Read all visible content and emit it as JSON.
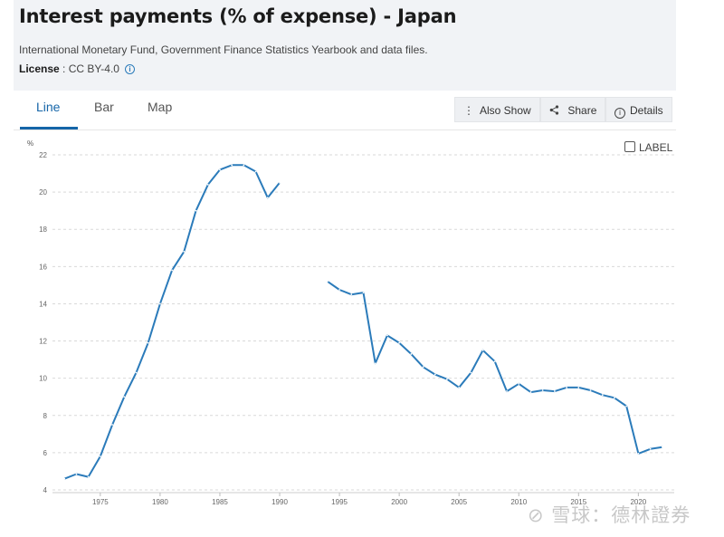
{
  "header": {
    "title": "Interest payments (% of expense) - Japan",
    "source": "International Monetary Fund, Government Finance Statistics Yearbook and data files.",
    "license_label": "License",
    "license_value": " : CC BY-4.0",
    "info_icon": "i"
  },
  "tabs": [
    {
      "label": "Line",
      "active": true
    },
    {
      "label": "Bar",
      "active": false
    },
    {
      "label": "Map",
      "active": false
    }
  ],
  "toolbar": {
    "also_show": "Also Show",
    "share": "Share",
    "details": "Details",
    "also_show_icon": "⋮",
    "share_icon": "share-icon",
    "details_icon": "info-circle-icon"
  },
  "label_toggle": "LABEL",
  "watermark": "⊘ 雪球：德林證券",
  "colors": {
    "line": "#2b7bba",
    "grid": "#d9d9d9",
    "header_bg": "#f1f3f6",
    "accent": "#1565a8"
  },
  "chart_data": {
    "type": "line",
    "title": "",
    "ylabel": "%",
    "xlabel": "",
    "ylim": [
      4,
      22
    ],
    "xlim": [
      1971,
      2023
    ],
    "yticks": [
      4,
      6,
      8,
      10,
      12,
      14,
      16,
      18,
      20,
      22
    ],
    "xticks": [
      1975,
      1980,
      1985,
      1990,
      1995,
      2000,
      2005,
      2010,
      2015,
      2020
    ],
    "grid": "horizontal-dashed",
    "series": [
      {
        "x": [
          1972,
          1973,
          1974,
          1975,
          1976,
          1977,
          1978,
          1979,
          1980,
          1981,
          1982,
          1983,
          1984,
          1985,
          1986,
          1987,
          1988,
          1989,
          1990,
          1991,
          1992,
          1993,
          1994,
          1995,
          1996,
          1997,
          1998,
          1999,
          2000,
          2001,
          2002,
          2003,
          2004,
          2005,
          2006,
          2007,
          2008,
          2009,
          2010,
          2011,
          2012,
          2013,
          2014,
          2015,
          2016,
          2017,
          2018,
          2019,
          2020,
          2021,
          2022
        ],
        "values": [
          4.6,
          4.85,
          4.7,
          5.8,
          7.5,
          9.0,
          10.3,
          11.9,
          14.0,
          15.8,
          16.8,
          19.0,
          20.4,
          21.2,
          21.45,
          21.45,
          21.1,
          19.7,
          20.5,
          null,
          null,
          null,
          15.2,
          14.75,
          14.5,
          14.6,
          10.8,
          12.3,
          11.9,
          11.3,
          10.6,
          10.2,
          9.95,
          9.5,
          10.3,
          11.5,
          10.9,
          9.3,
          9.7,
          9.25,
          9.35,
          9.3,
          9.5,
          9.5,
          9.35,
          9.1,
          8.95,
          8.5,
          5.95,
          6.2,
          6.3
        ]
      }
    ]
  }
}
